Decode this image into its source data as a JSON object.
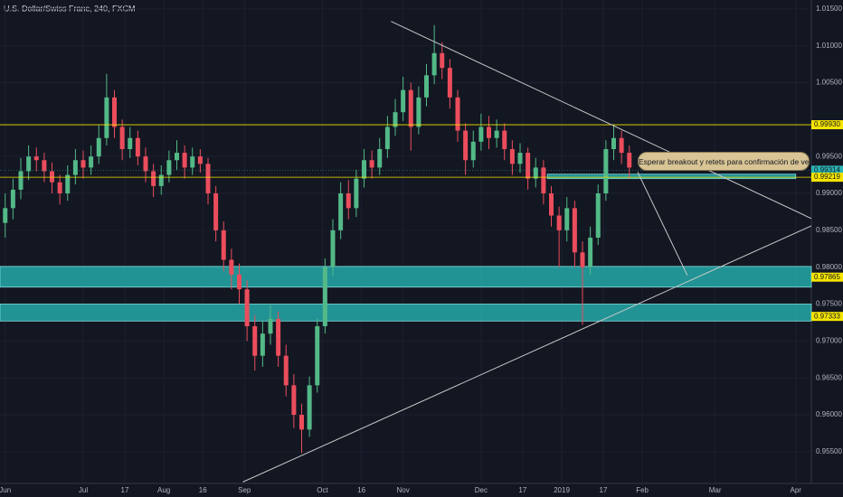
{
  "chart_data": {
    "type": "candlestick",
    "title": "U.S. Dollar/Swiss Franc, 240, FXCM",
    "annotation": "Esperar breakout y retets para confirmación de ventas",
    "up_color": "#53b987",
    "down_color": "#eb4d5c",
    "grid": true,
    "xlim": [
      -2,
      310
    ],
    "ylim": [
      0.9507,
      1.0162
    ],
    "xticks": [
      {
        "value": 0,
        "label": "Jun"
      },
      {
        "value": 30,
        "label": "Jul"
      },
      {
        "value": 46,
        "label": "17"
      },
      {
        "value": 61,
        "label": "Aug"
      },
      {
        "value": 76,
        "label": "16"
      },
      {
        "value": 92,
        "label": "Sep"
      },
      {
        "value": 122,
        "label": "Oct"
      },
      {
        "value": 137,
        "label": "16"
      },
      {
        "value": 153,
        "label": "Nov"
      },
      {
        "value": 183,
        "label": "Dec"
      },
      {
        "value": 199,
        "label": "17"
      },
      {
        "value": 214,
        "label": "2019"
      },
      {
        "value": 230,
        "label": "17"
      },
      {
        "value": 245,
        "label": "Feb"
      },
      {
        "value": 273,
        "label": "Mar"
      },
      {
        "value": 304,
        "label": "Apr"
      }
    ],
    "yticks": [
      {
        "value": 1.015,
        "label": "1.01500"
      },
      {
        "value": 1.01,
        "label": "1.01000"
      },
      {
        "value": 1.005,
        "label": "1.00500"
      },
      {
        "value": 0.995,
        "label": "0.99500"
      },
      {
        "value": 0.99,
        "label": "0.99000"
      },
      {
        "value": 0.985,
        "label": "0.98500"
      },
      {
        "value": 0.98,
        "label": "0.98000"
      },
      {
        "value": 0.975,
        "label": "0.97500"
      },
      {
        "value": 0.97,
        "label": "0.97000"
      },
      {
        "value": 0.965,
        "label": "0.96500"
      },
      {
        "value": 0.96,
        "label": "0.96000"
      },
      {
        "value": 0.955,
        "label": "0.95500"
      }
    ],
    "levels": [
      {
        "value": 0.9993,
        "label": "0.99930",
        "color": "#f5e400",
        "line": true
      },
      {
        "value": 0.99314,
        "label": "0.99314",
        "color": "#2bb5b5",
        "line": true
      },
      {
        "value": 0.99219,
        "label": "0.99219",
        "color": "#f5e400",
        "line": true
      },
      {
        "value": 0.97865,
        "label": "0.97865",
        "color": "#f5e400",
        "line": false
      },
      {
        "value": 0.97333,
        "label": "0.97333",
        "color": "#f5e400",
        "line": false
      }
    ],
    "zones": [
      {
        "from": 0.992,
        "to": 0.9926,
        "x": [
          208.5,
          304
        ]
      },
      {
        "from": 0.9773,
        "to": 0.9801
      },
      {
        "from": 0.9727,
        "to": 0.975
      }
    ],
    "zone_color": "#26a9a8",
    "lines": [
      {
        "x": [
          148.4,
          310
        ],
        "y": [
          1.0133,
          0.9866
        ]
      },
      {
        "x": [
          91.4,
          310
        ],
        "y": [
          0.9509,
          0.9856
        ]
      },
      {
        "x": [
          243.2,
          262.3
        ],
        "y": [
          0.9929,
          0.9789
        ]
      }
    ],
    "x": [
      0,
      3,
      6,
      9,
      12,
      15,
      18,
      21,
      24,
      27,
      30,
      33,
      36,
      39,
      42,
      45,
      48,
      51,
      54,
      57,
      60,
      63,
      66,
      69,
      72,
      75,
      78,
      81,
      84,
      87,
      90,
      93,
      96,
      99,
      102,
      105,
      108,
      111,
      114,
      117,
      120,
      123,
      126,
      129,
      132,
      135,
      138,
      141,
      144,
      147,
      150,
      153,
      156,
      159,
      162,
      165,
      168,
      171,
      174,
      177,
      180,
      183,
      186,
      189,
      192,
      195,
      198,
      201,
      204,
      207,
      210,
      213,
      216,
      219,
      222,
      225,
      228,
      231,
      234,
      237,
      240
    ],
    "candles": [
      [
        0.986,
        0.99,
        0.984,
        0.988
      ],
      [
        0.988,
        0.992,
        0.9865,
        0.9905
      ],
      [
        0.9905,
        0.9948,
        0.9892,
        0.993
      ],
      [
        0.993,
        0.9965,
        0.9918,
        0.995
      ],
      [
        0.995,
        0.9962,
        0.993,
        0.9945
      ],
      [
        0.9945,
        0.9955,
        0.9915,
        0.993
      ],
      [
        0.993,
        0.9942,
        0.99,
        0.9915
      ],
      [
        0.9915,
        0.9925,
        0.9885,
        0.99
      ],
      [
        0.99,
        0.9938,
        0.989,
        0.9925
      ],
      [
        0.9925,
        0.996,
        0.9912,
        0.9945
      ],
      [
        0.9945,
        0.9958,
        0.992,
        0.9935
      ],
      [
        0.9935,
        0.9965,
        0.9925,
        0.995
      ],
      [
        0.995,
        0.9992,
        0.994,
        0.9975
      ],
      [
        0.9975,
        1.0062,
        0.9965,
        1.003
      ],
      [
        1.003,
        1.004,
        0.9975,
        0.999
      ],
      [
        0.999,
        1.0,
        0.9945,
        0.996
      ],
      [
        0.996,
        0.999,
        0.9948,
        0.9975
      ],
      [
        0.9975,
        0.9985,
        0.9938,
        0.995
      ],
      [
        0.995,
        0.9962,
        0.9915,
        0.993
      ],
      [
        0.993,
        0.994,
        0.9895,
        0.991
      ],
      [
        0.991,
        0.9938,
        0.9898,
        0.9925
      ],
      [
        0.9925,
        0.9958,
        0.9915,
        0.9945
      ],
      [
        0.9945,
        0.9972,
        0.9932,
        0.9955
      ],
      [
        0.9955,
        0.9965,
        0.992,
        0.9935
      ],
      [
        0.9935,
        0.9962,
        0.9925,
        0.995
      ],
      [
        0.995,
        0.996,
        0.9928,
        0.994
      ],
      [
        0.994,
        0.9948,
        0.9885,
        0.99
      ],
      [
        0.99,
        0.991,
        0.9835,
        0.985
      ],
      [
        0.985,
        0.9862,
        0.9795,
        0.981
      ],
      [
        0.981,
        0.9825,
        0.977,
        0.979
      ],
      [
        0.979,
        0.9805,
        0.975,
        0.977
      ],
      [
        0.977,
        0.9782,
        0.97,
        0.972
      ],
      [
        0.972,
        0.9735,
        0.966,
        0.968
      ],
      [
        0.968,
        0.9728,
        0.9665,
        0.971
      ],
      [
        0.971,
        0.9748,
        0.9695,
        0.973
      ],
      [
        0.973,
        0.974,
        0.9665,
        0.968
      ],
      [
        0.968,
        0.9695,
        0.9625,
        0.964
      ],
      [
        0.964,
        0.9655,
        0.9582,
        0.96
      ],
      [
        0.96,
        0.9615,
        0.9548,
        0.958
      ],
      [
        0.958,
        0.9652,
        0.957,
        0.964
      ],
      [
        0.964,
        0.973,
        0.963,
        0.972
      ],
      [
        0.972,
        0.9812,
        0.971,
        0.98
      ],
      [
        0.98,
        0.9865,
        0.9788,
        0.985
      ],
      [
        0.985,
        0.9915,
        0.9838,
        0.99
      ],
      [
        0.99,
        0.9918,
        0.9865,
        0.988
      ],
      [
        0.988,
        0.9932,
        0.9868,
        0.992
      ],
      [
        0.992,
        0.996,
        0.9908,
        0.9945
      ],
      [
        0.9945,
        0.9958,
        0.992,
        0.9935
      ],
      [
        0.9935,
        0.9975,
        0.9925,
        0.996
      ],
      [
        0.996,
        1.0005,
        0.9948,
        0.999
      ],
      [
        0.999,
        1.0028,
        0.9978,
        1.001
      ],
      [
        1.001,
        1.0058,
        0.9998,
        1.004
      ],
      [
        1.004,
        1.005,
        0.9958,
        0.999
      ],
      [
        0.999,
        1.0045,
        0.998,
        1.003
      ],
      [
        1.003,
        1.0075,
        1.0018,
        1.006
      ],
      [
        1.006,
        1.0128,
        1.0048,
        1.009
      ],
      [
        1.009,
        1.0105,
        1.0055,
        1.007
      ],
      [
        1.007,
        1.0082,
        1.0015,
        1.003
      ],
      [
        1.003,
        1.004,
        0.997,
        0.9985
      ],
      [
        0.9985,
        0.9995,
        0.9925,
        0.9945
      ],
      [
        0.9945,
        0.9985,
        0.9935,
        0.997
      ],
      [
        0.997,
        1.0008,
        0.9958,
        0.999
      ],
      [
        0.999,
        1.0005,
        0.996,
        0.9975
      ],
      [
        0.9975,
        1.0,
        0.9962,
        0.9985
      ],
      [
        0.9985,
        0.9995,
        0.9945,
        0.996
      ],
      [
        0.996,
        0.9972,
        0.9925,
        0.994
      ],
      [
        0.994,
        0.9968,
        0.9928,
        0.9955
      ],
      [
        0.9955,
        0.9962,
        0.9905,
        0.992
      ],
      [
        0.992,
        0.9948,
        0.9908,
        0.9935
      ],
      [
        0.9935,
        0.9945,
        0.9885,
        0.99
      ],
      [
        0.99,
        0.991,
        0.9855,
        0.987
      ],
      [
        0.987,
        0.9882,
        0.98,
        0.985
      ],
      [
        0.985,
        0.9895,
        0.9835,
        0.988
      ],
      [
        0.988,
        0.989,
        0.98,
        0.982
      ],
      [
        0.982,
        0.9835,
        0.9722,
        0.98
      ],
      [
        0.98,
        0.9855,
        0.979,
        0.984
      ],
      [
        0.984,
        0.9912,
        0.983,
        0.99
      ],
      [
        0.99,
        0.9972,
        0.989,
        0.996
      ],
      [
        0.996,
        0.9992,
        0.9945,
        0.9975
      ],
      [
        0.9975,
        0.9985,
        0.994,
        0.9955
      ],
      [
        0.9955,
        0.9965,
        0.992,
        0.9935
      ]
    ]
  }
}
